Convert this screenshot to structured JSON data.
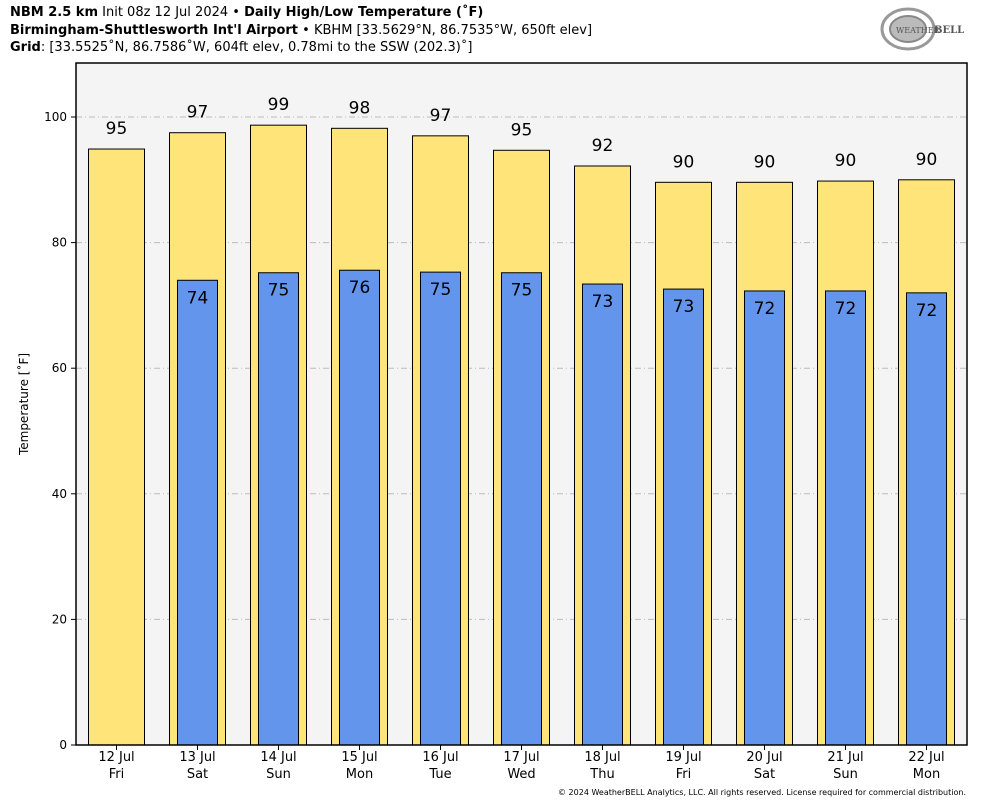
{
  "header": {
    "line1_bold": "NBM 2.5 km",
    "line1_init": "Init 08z 12 Jul 2024",
    "line1_sep": "•",
    "line1_title": "Daily High/Low Temperature (˚F)",
    "line2_bold": "Birmingham-Shuttlesworth Int'l Airport",
    "line2_sep": "•",
    "line2_rest": "KBHM [33.5629°N, 86.7535°W, 650ft elev]",
    "line3_bold": "Grid",
    "line3_rest": ": [33.5525˚N, 86.7586˚W, 604ft elev, 0.78mi to the SSW (202.3)˚]"
  },
  "logo": {
    "text": "WeatherBELL Analytics LLC"
  },
  "copyright": "© 2024 WeatherBELL Analytics, LLC. All rights reserved. License required for commercial distribution.",
  "chart_data": {
    "type": "bar",
    "title": "Daily High/Low Temperature (˚F)",
    "ylabel": "Temperature [˚F]",
    "xlabel": "",
    "ylim": [
      0,
      108.6
    ],
    "yticks": [
      0,
      20,
      40,
      60,
      80,
      100
    ],
    "grid": true,
    "categories": [
      "12 Jul",
      "13 Jul",
      "14 Jul",
      "15 Jul",
      "16 Jul",
      "17 Jul",
      "18 Jul",
      "19 Jul",
      "20 Jul",
      "21 Jul",
      "22 Jul"
    ],
    "weekdays": [
      "Fri",
      "Sat",
      "Sun",
      "Mon",
      "Tue",
      "Wed",
      "Thu",
      "Fri",
      "Sat",
      "Sun",
      "Mon"
    ],
    "series": [
      {
        "values": [
          94.9,
          97.5,
          98.7,
          98.2,
          97.0,
          94.7,
          92.2,
          89.6,
          89.6,
          89.8,
          90.0
        ],
        "labels": [
          "95",
          "97",
          "99",
          "98",
          "97",
          "95",
          "92",
          "90",
          "90",
          "90",
          "90"
        ],
        "color": "#ffe47a"
      },
      {
        "values": [
          null,
          74.0,
          75.2,
          75.6,
          75.3,
          75.2,
          73.4,
          72.6,
          72.3,
          72.3,
          72.0
        ],
        "labels": [
          "",
          "74",
          "75",
          "76",
          "75",
          "75",
          "73",
          "73",
          "72",
          "72",
          "72"
        ],
        "color": "#6495ed"
      }
    ]
  }
}
